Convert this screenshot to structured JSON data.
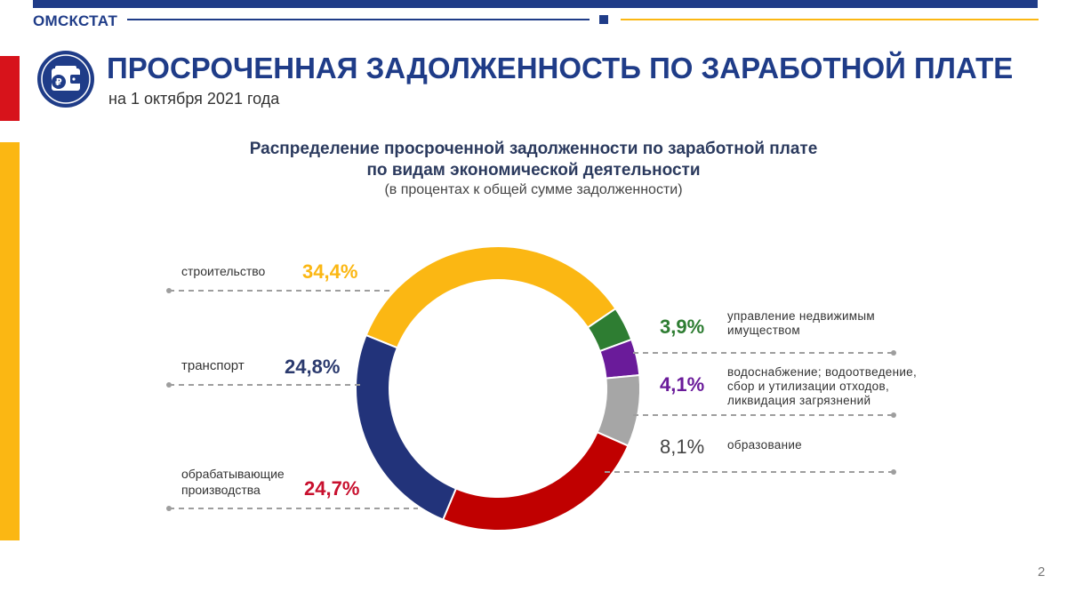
{
  "header": {
    "brand": "ОМСКСТАТ",
    "title": "ПРОСРОЧЕННАЯ ЗАДОЛЖЕННОСТЬ ПО ЗАРАБОТНОЙ ПЛАТЕ",
    "subtitle": "на 1 октября 2021 года",
    "logo_icon": "wallet-ruble-icon"
  },
  "colors": {
    "navy": "#1f3c88",
    "gold": "#fbb713",
    "red": "#d7131b"
  },
  "page_number": "2",
  "chart_data": {
    "type": "pie",
    "title_line1": "Распределение просроченной задолженности  по заработной плате",
    "title_line2": "по видам экономической деятельности",
    "note": "(в процентах  к общей сумме задолженности)",
    "slices": [
      {
        "label": "строительство",
        "value": 34.4,
        "display": "34,4%",
        "color": "#fbb713",
        "label_color": "#fbb713"
      },
      {
        "label": "управление  недвижимым имуществом",
        "value": 3.9,
        "display": "3,9%",
        "color": "#2e7d32",
        "label_color": "#2e7d32"
      },
      {
        "label": "водоснабжение;  водоотведение, сбор  и  утилизации  отходов, ликвидация  загрязнений",
        "value": 4.1,
        "display": "4,1%",
        "color": "#6a1b9a",
        "label_color": "#6a1b9a"
      },
      {
        "label": "образование",
        "value": 8.1,
        "display": "8,1%",
        "color": "#a6a6a6",
        "label_color": "#444444"
      },
      {
        "label": "обрабатывающие производства",
        "value": 24.7,
        "display": "24,7%",
        "color": "#c00000",
        "label_color": "#c8102e"
      },
      {
        "label": "транспорт",
        "value": 24.8,
        "display": "24,8%",
        "color": "#22337a",
        "label_color": "#2b3a6e"
      }
    ]
  }
}
